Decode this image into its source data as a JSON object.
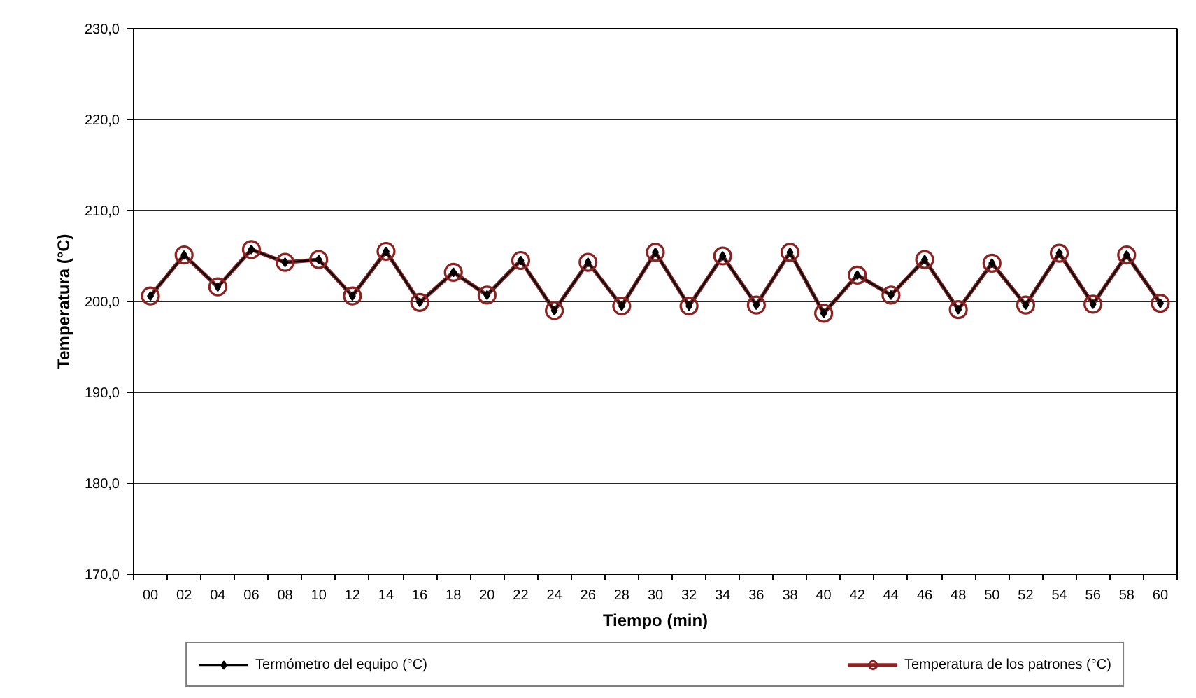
{
  "chart_data": {
    "type": "line",
    "xlabel": "Tiempo (min)",
    "ylabel": "Temperatura (°C)",
    "categories": [
      "00",
      "02",
      "04",
      "06",
      "08",
      "10",
      "12",
      "14",
      "16",
      "18",
      "20",
      "22",
      "24",
      "26",
      "28",
      "30",
      "32",
      "34",
      "36",
      "38",
      "40",
      "42",
      "44",
      "46",
      "48",
      "50",
      "52",
      "54",
      "56",
      "58",
      "60"
    ],
    "series": [
      {
        "name": "Termómetro del equipo (°C)",
        "color": "#000000",
        "marker": "diamond",
        "values": [
          200.6,
          205.1,
          201.6,
          205.7,
          204.3,
          204.6,
          200.6,
          205.5,
          199.9,
          203.2,
          200.7,
          204.5,
          199.0,
          204.3,
          199.5,
          205.4,
          199.5,
          205.0,
          199.6,
          205.4,
          198.7,
          202.9,
          200.7,
          204.6,
          199.1,
          204.2,
          199.6,
          205.3,
          199.7,
          205.1,
          199.8
        ]
      },
      {
        "name": "Temperatura de los patrones (°C)",
        "color": "#8b2323",
        "marker": "circle",
        "values": [
          200.6,
          205.1,
          201.6,
          205.7,
          204.3,
          204.6,
          200.6,
          205.5,
          199.9,
          203.2,
          200.7,
          204.5,
          199.0,
          204.3,
          199.5,
          205.4,
          199.5,
          205.0,
          199.6,
          205.4,
          198.7,
          202.9,
          200.7,
          204.6,
          199.1,
          204.2,
          199.6,
          205.3,
          199.7,
          205.1,
          199.8
        ]
      }
    ],
    "ylim": [
      170,
      230
    ],
    "yticks": [
      {
        "value": 170,
        "label": "170,0"
      },
      {
        "value": 180,
        "label": "180,0"
      },
      {
        "value": 190,
        "label": "190,0"
      },
      {
        "value": 200,
        "label": "200,0"
      },
      {
        "value": 210,
        "label": "210,0"
      },
      {
        "value": 220,
        "label": "220,0"
      },
      {
        "value": 230,
        "label": "230,0"
      }
    ],
    "grid": "y",
    "legend": "bottom"
  }
}
